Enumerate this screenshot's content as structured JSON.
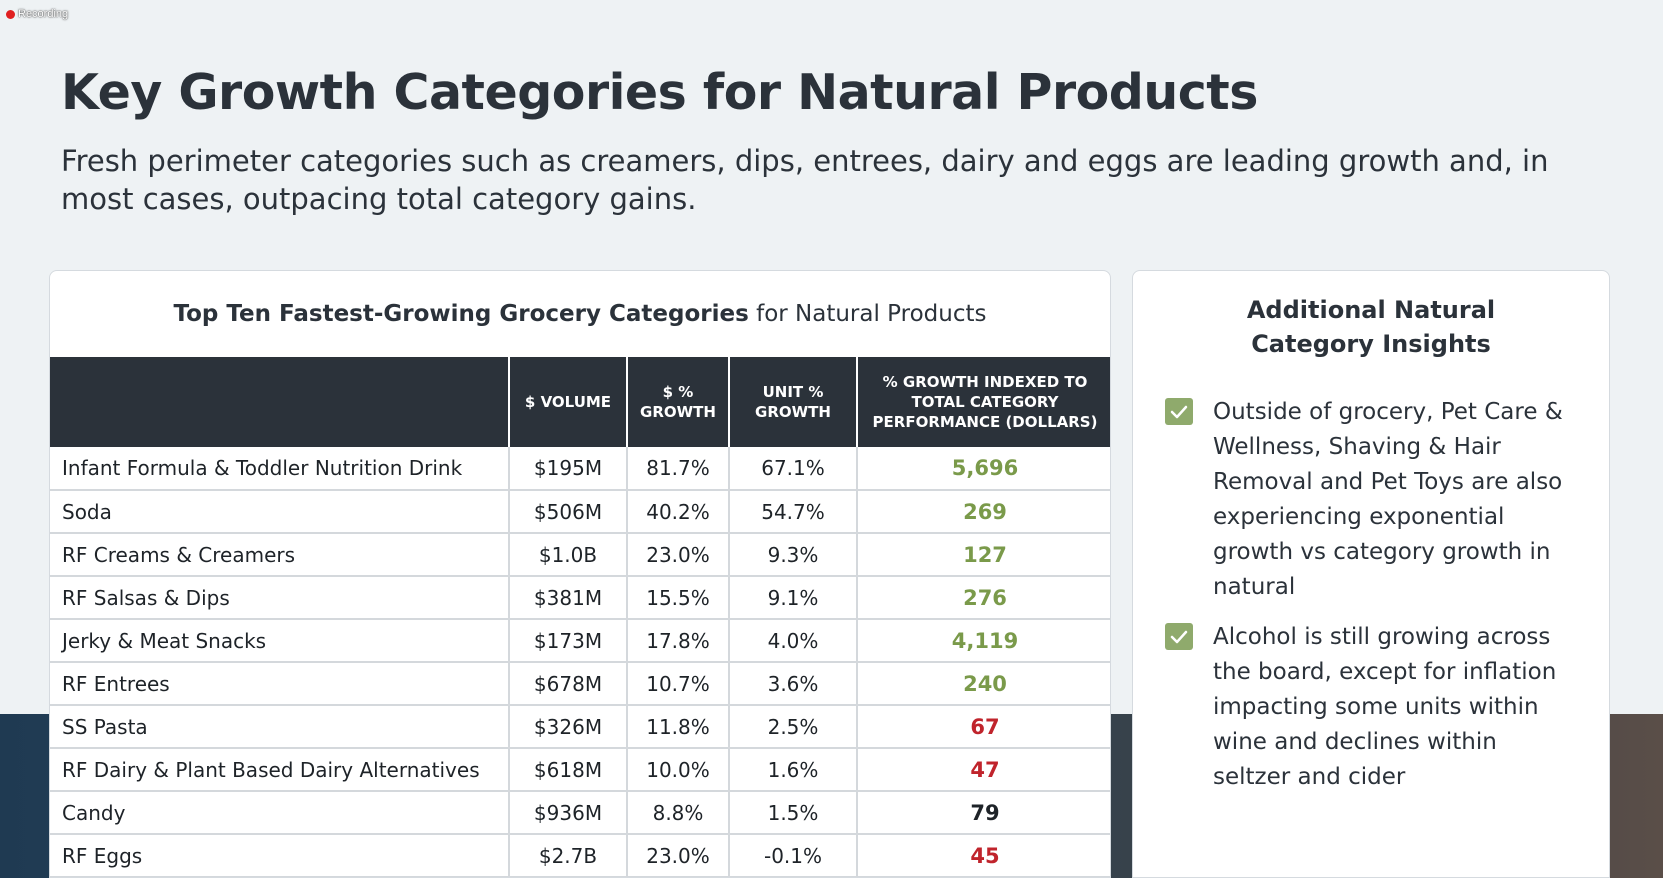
{
  "recording_label": "Recording",
  "title": {
    "bold": "Key Growth Categories",
    "rest": " for Natural Products"
  },
  "subtitle": "Fresh perimeter categories such as creamers, dips, entrees, dairy and eggs are leading growth and, in most cases, outpacing total category gains.",
  "table": {
    "title_bold": "Top Ten Fastest-Growing Grocery Categories",
    "title_rest": " for Natural Products",
    "headers": [
      "",
      "$ VOLUME",
      "$ % GROWTH",
      "UNIT % GROWTH",
      "% GROWTH INDEXED TO TOTAL CATEGORY PERFORMANCE (DOLLARS)"
    ],
    "rows": [
      {
        "category": "Infant Formula & Toddler Nutrition Drink",
        "volume": "$195M",
        "dollar_growth": "81.7%",
        "unit_growth": "67.1%",
        "index": "5,696",
        "status": "above"
      },
      {
        "category": "Soda",
        "volume": "$506M",
        "dollar_growth": "40.2%",
        "unit_growth": "54.7%",
        "index": "269",
        "status": "above"
      },
      {
        "category": "RF Creams & Creamers",
        "volume": "$1.0B",
        "dollar_growth": "23.0%",
        "unit_growth": "9.3%",
        "index": "127",
        "status": "above"
      },
      {
        "category": "RF Salsas & Dips",
        "volume": "$381M",
        "dollar_growth": "15.5%",
        "unit_growth": "9.1%",
        "index": "276",
        "status": "above"
      },
      {
        "category": "Jerky & Meat Snacks",
        "volume": "$173M",
        "dollar_growth": "17.8%",
        "unit_growth": "4.0%",
        "index": "4,119",
        "status": "above"
      },
      {
        "category": "RF Entrees",
        "volume": "$678M",
        "dollar_growth": "10.7%",
        "unit_growth": "3.6%",
        "index": "240",
        "status": "above"
      },
      {
        "category": "SS Pasta",
        "volume": "$326M",
        "dollar_growth": "11.8%",
        "unit_growth": "2.5%",
        "index": "67",
        "status": "below"
      },
      {
        "category": "RF Dairy & Plant Based Dairy Alternatives",
        "volume": "$618M",
        "dollar_growth": "10.0%",
        "unit_growth": "1.6%",
        "index": "47",
        "status": "below"
      },
      {
        "category": "Candy",
        "volume": "$936M",
        "dollar_growth": "8.8%",
        "unit_growth": "1.5%",
        "index": "79",
        "status": "neutral"
      },
      {
        "category": "RF Eggs",
        "volume": "$2.7B",
        "dollar_growth": "23.0%",
        "unit_growth": "-0.1%",
        "index": "45",
        "status": "below"
      }
    ]
  },
  "insights": {
    "title_line1": "Additional Natural",
    "title_line2": "Category Insights",
    "items": [
      {
        "text": "Outside of grocery, Pet Care & Wellness, Shaving & Hair Removal and Pet Toys are also experiencing exponential growth vs category growth in natural",
        "icon": "checkbox-checked-icon"
      },
      {
        "text": "Alcohol is still growing across the board, except for inflation impacting some units within wine and declines within seltzer and cider",
        "icon": "checkbox-checked-icon"
      }
    ]
  },
  "colors": {
    "above": "#7a9a4a",
    "below": "#c0242c",
    "neutral": "#1e2328",
    "header_bg": "#2b323a",
    "checkbox": "#8faa6c"
  }
}
